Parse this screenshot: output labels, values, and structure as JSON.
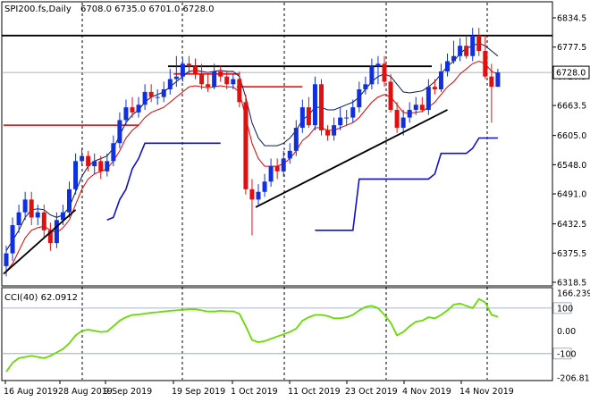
{
  "chart_data": [
    {
      "type": "candlestick",
      "title": "SPI200.fs,Daily",
      "ohlc_header": "6708.0 6735.0 6701.0 6728.0",
      "current_price_label": "6728.0",
      "ylim": [
        6318.5,
        6863.0
      ],
      "y_ticks": [
        "6834.5",
        "6777.5",
        "6720.5",
        "6663.5",
        "6605.0",
        "6548.0",
        "6491.0",
        "6432.5",
        "6375.5",
        "6318.5"
      ],
      "x_ticks": [
        "16 Aug 2019",
        "28 Aug 2019",
        "9 Sep 2019",
        "19 Sep 2019",
        "1 Oct 2019",
        "11 Oct 2019",
        "23 Oct 2019",
        "4 Nov 2019",
        "14 Nov 2019"
      ],
      "grid": "vertical-dotted",
      "candles": {
        "open": [
          6350,
          6375,
          6430,
          6455,
          6480,
          6445,
          6455,
          6420,
          6395,
          6440,
          6455,
          6500,
          6555,
          6565,
          6545,
          6555,
          6535,
          6555,
          6590,
          6635,
          6660,
          6650,
          6665,
          6690,
          6680,
          6680,
          6695,
          6715,
          6720,
          6745,
          6740,
          6725,
          6705,
          6700,
          6730,
          6720,
          6705,
          6715,
          6670,
          6500,
          6480,
          6495,
          6515,
          6545,
          6535,
          6560,
          6575,
          6620,
          6660,
          6625,
          6705,
          6615,
          6605,
          6625,
          6640,
          6640,
          6660,
          6695,
          6705,
          6740,
          6745,
          6710,
          6655,
          6620,
          6640,
          6655,
          6665,
          6655,
          6700,
          6695,
          6730,
          6750,
          6760,
          6780,
          6760,
          6800,
          6770,
          6720,
          6700
        ],
        "close": [
          6375,
          6430,
          6455,
          6480,
          6445,
          6455,
          6420,
          6395,
          6440,
          6455,
          6500,
          6555,
          6565,
          6545,
          6555,
          6535,
          6555,
          6590,
          6635,
          6660,
          6650,
          6665,
          6690,
          6680,
          6680,
          6695,
          6715,
          6720,
          6745,
          6740,
          6725,
          6705,
          6700,
          6730,
          6720,
          6705,
          6715,
          6670,
          6500,
          6480,
          6495,
          6515,
          6545,
          6535,
          6560,
          6575,
          6620,
          6660,
          6625,
          6705,
          6615,
          6605,
          6625,
          6640,
          6640,
          6660,
          6695,
          6705,
          6740,
          6745,
          6710,
          6655,
          6620,
          6640,
          6655,
          6665,
          6655,
          6700,
          6695,
          6730,
          6750,
          6760,
          6780,
          6760,
          6800,
          6770,
          6720,
          6700,
          6728
        ],
        "high": [
          6390,
          6445,
          6470,
          6495,
          6495,
          6470,
          6470,
          6435,
          6455,
          6470,
          6515,
          6570,
          6580,
          6575,
          6570,
          6565,
          6570,
          6605,
          6650,
          6675,
          6680,
          6680,
          6705,
          6705,
          6695,
          6710,
          6735,
          6760,
          6755,
          6760,
          6755,
          6745,
          6725,
          6745,
          6740,
          6730,
          6725,
          6730,
          6685,
          6520,
          6510,
          6530,
          6560,
          6560,
          6575,
          6590,
          6635,
          6675,
          6680,
          6720,
          6715,
          6625,
          6640,
          6660,
          6655,
          6675,
          6710,
          6720,
          6755,
          6760,
          6760,
          6725,
          6670,
          6655,
          6670,
          6680,
          6680,
          6715,
          6715,
          6745,
          6765,
          6790,
          6795,
          6800,
          6815,
          6815,
          6800,
          6745,
          6735
        ],
        "low": [
          6330,
          6360,
          6415,
          6440,
          6430,
          6430,
          6405,
          6380,
          6385,
          6430,
          6445,
          6490,
          6545,
          6535,
          6530,
          6520,
          6525,
          6545,
          6580,
          6625,
          6640,
          6640,
          6655,
          6670,
          6665,
          6670,
          6685,
          6700,
          6710,
          6725,
          6715,
          6695,
          6690,
          6695,
          6710,
          6695,
          6695,
          6660,
          6490,
          6410,
          6470,
          6485,
          6505,
          6520,
          6525,
          6550,
          6565,
          6610,
          6620,
          6615,
          6605,
          6595,
          6595,
          6615,
          6625,
          6630,
          6650,
          6685,
          6695,
          6705,
          6700,
          6650,
          6610,
          6605,
          6630,
          6645,
          6650,
          6645,
          6685,
          6690,
          6720,
          6745,
          6750,
          6755,
          6750,
          6760,
          6715,
          6630,
          6700
        ]
      },
      "ma_red": [
        6340,
        6355,
        6380,
        6405,
        6420,
        6425,
        6428,
        6420,
        6415,
        6425,
        6440,
        6470,
        6500,
        6520,
        6530,
        6535,
        6540,
        6555,
        6575,
        6600,
        6615,
        6625,
        6640,
        6650,
        6655,
        6660,
        6670,
        6680,
        6690,
        6700,
        6702,
        6700,
        6698,
        6700,
        6702,
        6700,
        6700,
        6690,
        6640,
        6590,
        6560,
        6545,
        6545,
        6545,
        6550,
        6560,
        6575,
        6595,
        6605,
        6620,
        6620,
        6615,
        6615,
        6620,
        6625,
        6630,
        6640,
        6655,
        6670,
        6680,
        6685,
        6680,
        6665,
        6650,
        6648,
        6650,
        6652,
        6660,
        6670,
        6685,
        6700,
        6710,
        6725,
        6735,
        6745,
        6750,
        6745,
        6730,
        6725
      ],
      "ma_navy": [
        6380,
        6400,
        6420,
        6445,
        6460,
        6462,
        6460,
        6450,
        6445,
        6450,
        6465,
        6495,
        6525,
        6545,
        6555,
        6560,
        6565,
        6580,
        6605,
        6630,
        6645,
        6655,
        6670,
        6680,
        6685,
        6690,
        6700,
        6710,
        6720,
        6730,
        6732,
        6730,
        6728,
        6730,
        6732,
        6730,
        6730,
        6720,
        6680,
        6630,
        6600,
        6585,
        6585,
        6585,
        6590,
        6600,
        6615,
        6635,
        6645,
        6660,
        6660,
        6655,
        6655,
        6660,
        6665,
        6670,
        6680,
        6695,
        6710,
        6720,
        6725,
        6720,
        6705,
        6690,
        6688,
        6690,
        6692,
        6700,
        6710,
        6725,
        6740,
        6750,
        6765,
        6775,
        6780,
        6785,
        6780,
        6770,
        6760
      ],
      "support_steps": [
        {
          "from": 0,
          "to": 21,
          "level": 6625
        },
        {
          "from": 27,
          "to": 37,
          "level": 6725
        },
        {
          "from": 37,
          "to": 47,
          "level": 6700
        }
      ],
      "lower_band": [
        null,
        null,
        null,
        null,
        null,
        null,
        null,
        null,
        null,
        null,
        null,
        null,
        null,
        null,
        null,
        null,
        6440,
        6445,
        6480,
        6500,
        6540,
        6560,
        6590,
        6590,
        6590,
        6590,
        6590,
        6590,
        6590,
        6590,
        6590,
        6590,
        6590,
        6590,
        6590,
        null,
        null,
        null,
        null,
        null,
        null,
        null,
        null,
        null,
        null,
        null,
        null,
        null,
        null,
        6420,
        6420,
        6420,
        6420,
        6420,
        6420,
        6420,
        6520,
        6520,
        6520,
        6520,
        6520,
        6520,
        6520,
        6520,
        6520,
        6520,
        6520,
        6520,
        6530,
        6570,
        6570,
        6570,
        6570,
        6570,
        6580,
        6600,
        6600,
        6600,
        6600
      ],
      "horizontal_lines": [
        6800,
        6740
      ],
      "trend_lines": [
        {
          "x1": 0,
          "y1": 6335,
          "x2": 11,
          "y2": 6460
        },
        {
          "x1": 40,
          "y1": 6465,
          "x2": 70,
          "y2": 6655
        }
      ]
    },
    {
      "type": "line",
      "title": "CCI(40) 62.0912",
      "ylim": [
        -206.816,
        166.2394
      ],
      "y_ticks": [
        "166.2394",
        "100",
        "0.00",
        "-100",
        "-206.816"
      ],
      "reference_lines": [
        100,
        -100
      ],
      "values": [
        -180,
        -140,
        -120,
        -115,
        -110,
        -115,
        -120,
        -110,
        -95,
        -80,
        -55,
        -20,
        0,
        5,
        0,
        -5,
        -3,
        20,
        45,
        60,
        70,
        72,
        75,
        80,
        82,
        85,
        88,
        90,
        92,
        95,
        95,
        90,
        85,
        85,
        88,
        86,
        86,
        75,
        20,
        -40,
        -50,
        -45,
        -35,
        -25,
        -15,
        -5,
        10,
        45,
        60,
        70,
        70,
        65,
        55,
        55,
        60,
        70,
        90,
        105,
        110,
        100,
        70,
        35,
        -20,
        -5,
        20,
        40,
        45,
        60,
        55,
        70,
        90,
        115,
        120,
        110,
        100,
        140,
        125,
        70,
        62
      ]
    }
  ]
}
